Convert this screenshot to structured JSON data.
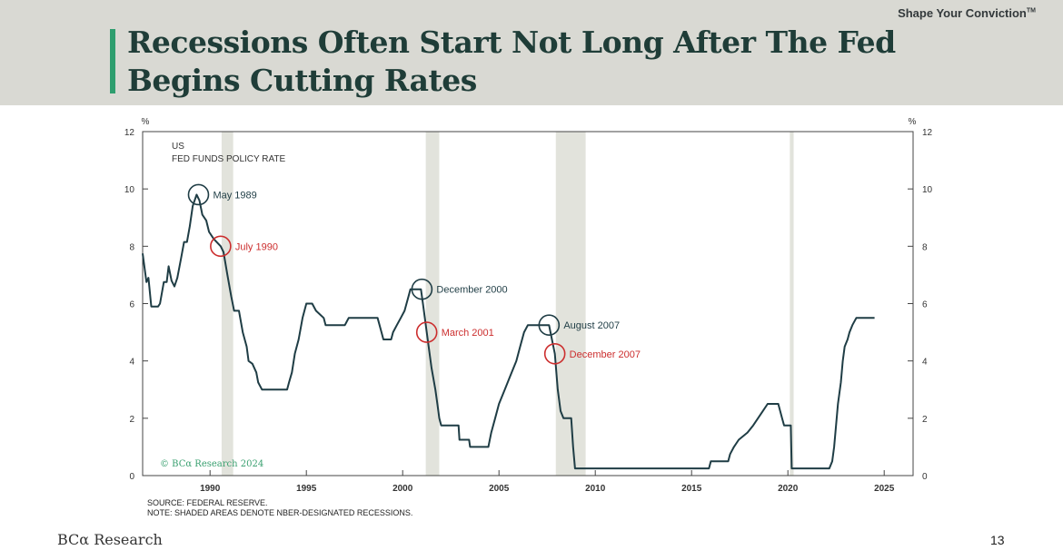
{
  "header": {
    "tagline": "Shape Your Conviction",
    "tagline_mark": "TM",
    "title": "Recessions Often Start Not Long After The Fed Begins Cutting Rates"
  },
  "footer": {
    "brand": "BCα Research",
    "page_number": "13"
  },
  "chart_data": {
    "type": "line",
    "title": "US",
    "subtitle": "FED FUNDS POLICY RATE",
    "ylabel_left": "%",
    "ylabel_right": "%",
    "ylim": [
      0,
      12
    ],
    "yticks": [
      0,
      2,
      4,
      6,
      8,
      10,
      12
    ],
    "xlim": [
      1986.5,
      2026.5
    ],
    "xticks": [
      1990,
      1995,
      2000,
      2005,
      2010,
      2015,
      2020,
      2025
    ],
    "copyright": "© BCα Research 2024",
    "source": "SOURCE: FEDERAL RESERVE.",
    "note": "NOTE: SHADED AREAS DENOTE NBER-DESIGNATED RECESSIONS.",
    "colors": {
      "line": "#1f3d45",
      "recession": "#e2e3dc",
      "peak_marker": "#1f3d45",
      "cut_marker": "#cc2e2e",
      "axis": "#444444",
      "copyright": "#3aa070"
    },
    "recessions": [
      [
        1990.6,
        1991.2
      ],
      [
        2001.2,
        2001.9
      ],
      [
        2007.95,
        2009.5
      ],
      [
        2020.1,
        2020.3
      ]
    ],
    "annotations": [
      {
        "label": "May 1989",
        "x": 1989.4,
        "y": 9.8,
        "kind": "peak"
      },
      {
        "label": "July 1990",
        "x": 1990.55,
        "y": 8.0,
        "kind": "cut"
      },
      {
        "label": "December 2000",
        "x": 2001.0,
        "y": 6.5,
        "kind": "peak"
      },
      {
        "label": "March 2001",
        "x": 2001.25,
        "y": 5.0,
        "kind": "cut"
      },
      {
        "label": "August 2007",
        "x": 2007.6,
        "y": 5.25,
        "kind": "peak"
      },
      {
        "label": "December 2007",
        "x": 2007.9,
        "y": 4.25,
        "kind": "cut"
      }
    ],
    "series": [
      {
        "name": "Fed Funds Policy Rate",
        "points": [
          [
            1986.5,
            7.75
          ],
          [
            1986.6,
            7.25
          ],
          [
            1986.7,
            6.75
          ],
          [
            1986.8,
            6.9
          ],
          [
            1986.95,
            5.9
          ],
          [
            1987.3,
            5.9
          ],
          [
            1987.4,
            6.0
          ],
          [
            1987.6,
            6.75
          ],
          [
            1987.75,
            6.75
          ],
          [
            1987.85,
            7.3
          ],
          [
            1988.0,
            6.8
          ],
          [
            1988.15,
            6.6
          ],
          [
            1988.3,
            6.9
          ],
          [
            1988.5,
            7.6
          ],
          [
            1988.65,
            8.15
          ],
          [
            1988.8,
            8.15
          ],
          [
            1988.95,
            8.7
          ],
          [
            1989.1,
            9.4
          ],
          [
            1989.3,
            9.8
          ],
          [
            1989.45,
            9.6
          ],
          [
            1989.6,
            9.1
          ],
          [
            1989.8,
            8.9
          ],
          [
            1989.95,
            8.5
          ],
          [
            1990.2,
            8.25
          ],
          [
            1990.55,
            8.0
          ],
          [
            1990.7,
            7.8
          ],
          [
            1990.9,
            7.0
          ],
          [
            1991.1,
            6.25
          ],
          [
            1991.25,
            5.75
          ],
          [
            1991.5,
            5.75
          ],
          [
            1991.7,
            5.0
          ],
          [
            1991.9,
            4.5
          ],
          [
            1992.0,
            4.0
          ],
          [
            1992.2,
            3.9
          ],
          [
            1992.4,
            3.6
          ],
          [
            1992.5,
            3.25
          ],
          [
            1992.7,
            3.0
          ],
          [
            1993.0,
            3.0
          ],
          [
            1993.8,
            3.0
          ],
          [
            1994.0,
            3.0
          ],
          [
            1994.1,
            3.25
          ],
          [
            1994.25,
            3.6
          ],
          [
            1994.4,
            4.25
          ],
          [
            1994.6,
            4.75
          ],
          [
            1994.8,
            5.5
          ],
          [
            1995.0,
            6.0
          ],
          [
            1995.3,
            6.0
          ],
          [
            1995.5,
            5.75
          ],
          [
            1995.9,
            5.5
          ],
          [
            1996.0,
            5.25
          ],
          [
            1997.0,
            5.25
          ],
          [
            1997.2,
            5.5
          ],
          [
            1998.7,
            5.5
          ],
          [
            1998.9,
            5.0
          ],
          [
            1999.0,
            4.75
          ],
          [
            1999.4,
            4.75
          ],
          [
            1999.5,
            5.0
          ],
          [
            1999.7,
            5.25
          ],
          [
            1999.9,
            5.5
          ],
          [
            2000.1,
            5.75
          ],
          [
            2000.3,
            6.25
          ],
          [
            2000.4,
            6.5
          ],
          [
            2000.95,
            6.5
          ],
          [
            2001.05,
            6.0
          ],
          [
            2001.15,
            5.5
          ],
          [
            2001.25,
            5.0
          ],
          [
            2001.35,
            4.5
          ],
          [
            2001.5,
            3.75
          ],
          [
            2001.7,
            3.0
          ],
          [
            2001.8,
            2.5
          ],
          [
            2001.9,
            2.0
          ],
          [
            2002.0,
            1.75
          ],
          [
            2002.9,
            1.75
          ],
          [
            2002.95,
            1.25
          ],
          [
            2003.45,
            1.25
          ],
          [
            2003.5,
            1.0
          ],
          [
            2004.45,
            1.0
          ],
          [
            2004.6,
            1.5
          ],
          [
            2004.8,
            2.0
          ],
          [
            2005.0,
            2.5
          ],
          [
            2005.3,
            3.0
          ],
          [
            2005.6,
            3.5
          ],
          [
            2005.9,
            4.0
          ],
          [
            2006.1,
            4.5
          ],
          [
            2006.3,
            5.0
          ],
          [
            2006.5,
            5.25
          ],
          [
            2007.6,
            5.25
          ],
          [
            2007.75,
            4.75
          ],
          [
            2007.9,
            4.25
          ],
          [
            2008.05,
            3.0
          ],
          [
            2008.2,
            2.25
          ],
          [
            2008.35,
            2.0
          ],
          [
            2008.75,
            2.0
          ],
          [
            2008.85,
            1.0
          ],
          [
            2008.95,
            0.25
          ],
          [
            2015.9,
            0.25
          ],
          [
            2016.0,
            0.5
          ],
          [
            2016.9,
            0.5
          ],
          [
            2017.0,
            0.75
          ],
          [
            2017.2,
            1.0
          ],
          [
            2017.45,
            1.25
          ],
          [
            2017.9,
            1.5
          ],
          [
            2018.2,
            1.75
          ],
          [
            2018.45,
            2.0
          ],
          [
            2018.7,
            2.25
          ],
          [
            2018.95,
            2.5
          ],
          [
            2019.5,
            2.5
          ],
          [
            2019.6,
            2.25
          ],
          [
            2019.7,
            2.0
          ],
          [
            2019.8,
            1.75
          ],
          [
            2020.15,
            1.75
          ],
          [
            2020.2,
            0.25
          ],
          [
            2022.15,
            0.25
          ],
          [
            2022.3,
            0.5
          ],
          [
            2022.4,
            1.0
          ],
          [
            2022.5,
            1.75
          ],
          [
            2022.6,
            2.5
          ],
          [
            2022.75,
            3.25
          ],
          [
            2022.85,
            4.0
          ],
          [
            2022.95,
            4.5
          ],
          [
            2023.1,
            4.75
          ],
          [
            2023.2,
            5.0
          ],
          [
            2023.35,
            5.25
          ],
          [
            2023.55,
            5.5
          ],
          [
            2024.5,
            5.5
          ]
        ]
      }
    ]
  }
}
